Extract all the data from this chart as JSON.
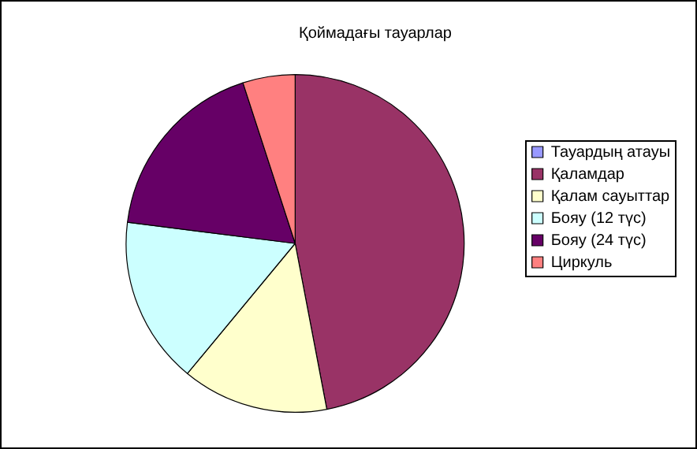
{
  "chart_data": {
    "type": "pie",
    "title": "Қоймадағы тауарлар",
    "categories": [
      "Тауардың атауы",
      "Қаламдар",
      "Қалам сауыттар",
      "Бояу (12 түс)",
      "Бояу (24 түс)",
      "Циркуль"
    ],
    "values": [
      0,
      47,
      14,
      16,
      18,
      5
    ],
    "colors": [
      "#9999ff",
      "#993366",
      "#ffffcc",
      "#ccffff",
      "#660066",
      "#ff8080"
    ],
    "legend": "right"
  }
}
